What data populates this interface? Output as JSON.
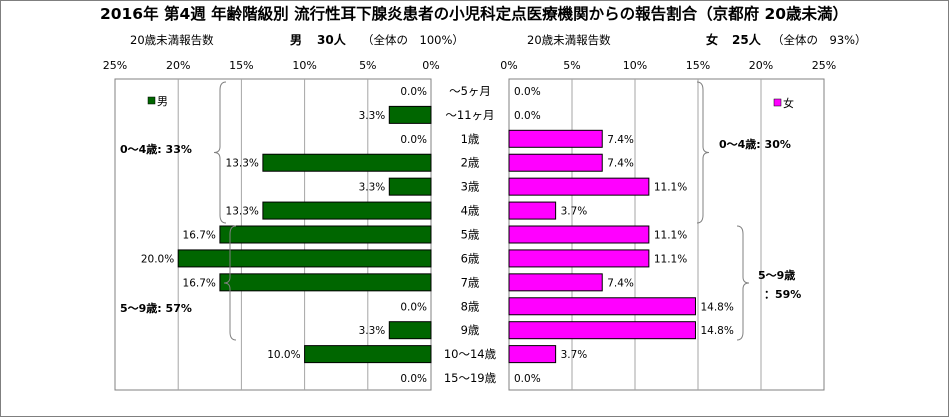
{
  "title": "2016年 第4週 年齢階級別 流行性耳下腺炎患者の小児科定点医療機関からの報告割合（京都府 20歳未満）",
  "left_header": {
    "label": "20歳未満報告数",
    "sex": "男",
    "count": "30人",
    "total_note": "（全体の　100%）"
  },
  "right_header": {
    "label": "20歳未満報告数",
    "sex": "女",
    "count": "25人",
    "total_note": "（全体の　93%）"
  },
  "left_legend": "男",
  "right_legend": "女",
  "groups": {
    "left_0_4": "0～4歳: 33%",
    "left_5_9": "5～9歳: 57%",
    "right_0_4": "0～4歳: 30%",
    "right_5_9_line1": "5～9歳",
    "right_5_9_line2": "：59%"
  },
  "chart_data": {
    "type": "bar",
    "orientation": "horizontal",
    "layout": "population-pyramid",
    "categories": [
      "～5ヶ月",
      "～11ヶ月",
      "1歳",
      "2歳",
      "3歳",
      "4歳",
      "5歳",
      "6歳",
      "7歳",
      "8歳",
      "9歳",
      "10～14歳",
      "15～19歳"
    ],
    "series": [
      {
        "name": "男",
        "values": [
          0.0,
          3.3,
          0.0,
          13.3,
          3.3,
          13.3,
          16.7,
          20.0,
          16.7,
          0.0,
          3.3,
          10.0,
          0.0
        ],
        "labels": [
          "0.0%",
          "3.3%",
          "0.0%",
          "13.3%",
          "3.3%",
          "13.3%",
          "16.7%",
          "20.0%",
          "16.7%",
          "0.0%",
          "3.3%",
          "10.0%",
          "0.0%"
        ],
        "color": "#006600"
      },
      {
        "name": "女",
        "values": [
          0.0,
          0.0,
          7.4,
          7.4,
          11.1,
          3.7,
          11.1,
          11.1,
          7.4,
          14.8,
          14.8,
          3.7,
          0.0
        ],
        "labels": [
          "0.0%",
          "0.0%",
          "7.4%",
          "7.4%",
          "11.1%",
          "3.7%",
          "11.1%",
          "11.1%",
          "7.4%",
          "14.8%",
          "14.8%",
          "3.7%",
          "0.0%"
        ],
        "color": "#ff00ff"
      }
    ],
    "xlim": [
      0,
      25
    ],
    "left_ticks": [
      "25%",
      "20%",
      "15%",
      "10%",
      "5%",
      "0%"
    ],
    "right_ticks": [
      "0%",
      "5%",
      "10%",
      "15%",
      "20%",
      "25%"
    ],
    "legend_position": "top-left / top-right",
    "grid": true
  }
}
